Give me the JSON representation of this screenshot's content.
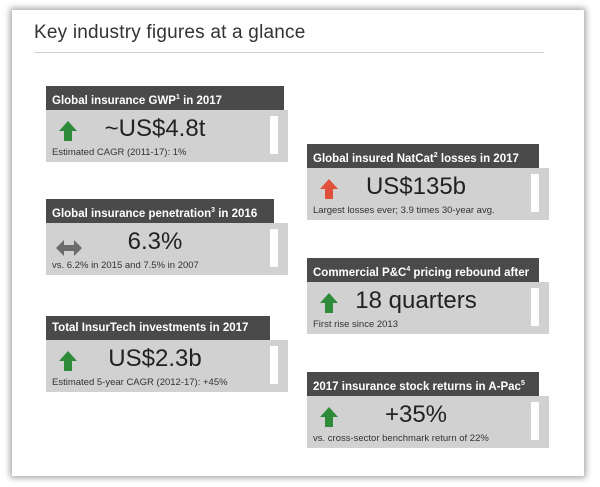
{
  "title": "Key industry figures at a glance",
  "cards": [
    {
      "head": "Global insurance GWP",
      "sup": "1",
      "head_tail": " in 2017",
      "value": "~US$4.8t",
      "note": "Estimated CAGR (2011-17): 1%",
      "icon": "arrow-up-icon",
      "icon_color": "#2e8b3a"
    },
    {
      "head": "Global insurance penetration",
      "sup": "3",
      "head_tail": " in 2016",
      "value": "6.3%",
      "note": "vs. 6.2% in 2015 and 7.5% in 2007",
      "icon": "arrow-left-right-icon",
      "icon_color": "#6b6b6b"
    },
    {
      "head": "Total InsurTech investments in 2017",
      "sup": "",
      "head_tail": "",
      "value": "US$2.3b",
      "note": "Estimated 5-year CAGR (2012-17): +45%",
      "icon": "arrow-up-icon",
      "icon_color": "#2e8b3a"
    },
    {
      "head": "Global insured NatCat",
      "sup": "2",
      "head_tail": " losses in 2017",
      "value": "US$135b",
      "note": "Largest losses ever; 3.9 times 30-year avg.",
      "icon": "arrow-up-icon",
      "icon_color": "#e0503a"
    },
    {
      "head": "Commercial P&C",
      "sup": "4",
      "head_tail": " pricing rebound after",
      "value": "18 quarters",
      "note": "First rise since 2013",
      "icon": "arrow-up-icon",
      "icon_color": "#2e8b3a"
    },
    {
      "head": "2017 insurance stock returns in A-Pac",
      "sup": "5",
      "head_tail": "",
      "value": "+35%",
      "note": "vs. cross-sector benchmark return of 22%",
      "icon": "arrow-up-icon",
      "icon_color": "#2e8b3a"
    }
  ]
}
